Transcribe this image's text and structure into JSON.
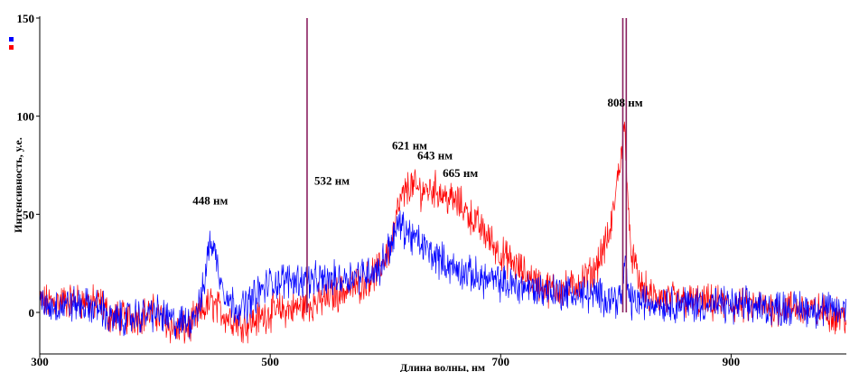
{
  "chart_data": {
    "type": "line",
    "title": "",
    "xlabel": "Длина волны, нм",
    "ylabel": "Интенсивность, у.е.",
    "xlim": [
      300,
      1000
    ],
    "ylim": [
      -18,
      150
    ],
    "xticks": [
      300,
      500,
      700,
      900
    ],
    "yticks": [
      0,
      50,
      100,
      150
    ],
    "grid": false,
    "legend": "top-left",
    "series": [
      {
        "color": "#0000ff",
        "x": [
          300,
          330,
          355,
          360,
          375,
          400,
          420,
          430,
          440,
          445,
          448,
          452,
          458,
          465,
          475,
          490,
          500,
          520,
          540,
          560,
          580,
          595,
          605,
          612,
          620,
          640,
          660,
          680,
          700,
          730,
          760,
          790,
          805,
          808,
          812,
          830,
          870,
          920,
          960,
          1000
        ],
        "y": [
          3,
          4,
          2,
          -4,
          -3,
          0,
          -6,
          -4,
          5,
          25,
          38,
          30,
          15,
          5,
          2,
          10,
          15,
          17,
          16,
          17,
          20,
          22,
          36,
          45,
          40,
          30,
          22,
          18,
          15,
          12,
          10,
          8,
          7,
          25,
          6,
          5,
          4,
          3,
          2,
          1
        ]
      },
      {
        "color": "#ff0000",
        "x": [
          300,
          330,
          355,
          360,
          375,
          400,
          420,
          430,
          440,
          448,
          455,
          462,
          470,
          480,
          500,
          520,
          540,
          560,
          580,
          595,
          605,
          612,
          621,
          630,
          643,
          655,
          665,
          680,
          700,
          720,
          740,
          760,
          780,
          795,
          803,
          808,
          812,
          820,
          830,
          870,
          920,
          960,
          1000
        ],
        "y": [
          5,
          6,
          4,
          -2,
          -3,
          0,
          -10,
          -7,
          0,
          5,
          2,
          -2,
          -4,
          -6,
          0,
          2,
          5,
          10,
          15,
          22,
          35,
          55,
          65,
          62,
          63,
          58,
          55,
          45,
          30,
          20,
          12,
          12,
          20,
          40,
          75,
          95,
          35,
          15,
          8,
          5,
          3,
          2,
          -2
        ]
      }
    ],
    "spikes": [
      {
        "x": 532,
        "top": 150,
        "color": "#8a2060"
      },
      {
        "x": 806,
        "top": 150,
        "color": "#8a2060"
      },
      {
        "x": 809,
        "top": 150,
        "color": "#8a2060"
      }
    ],
    "annotations": [
      {
        "text": "448 нм",
        "x": 448,
        "y": 55
      },
      {
        "text": "532 нм",
        "x": 532,
        "y": 65
      },
      {
        "text": "621 нм",
        "x": 621,
        "y": 83
      },
      {
        "text": "643 нм",
        "x": 643,
        "y": 78
      },
      {
        "text": "665 нм",
        "x": 665,
        "y": 69
      },
      {
        "text": "808 нм",
        "x": 808,
        "y": 105
      }
    ]
  }
}
